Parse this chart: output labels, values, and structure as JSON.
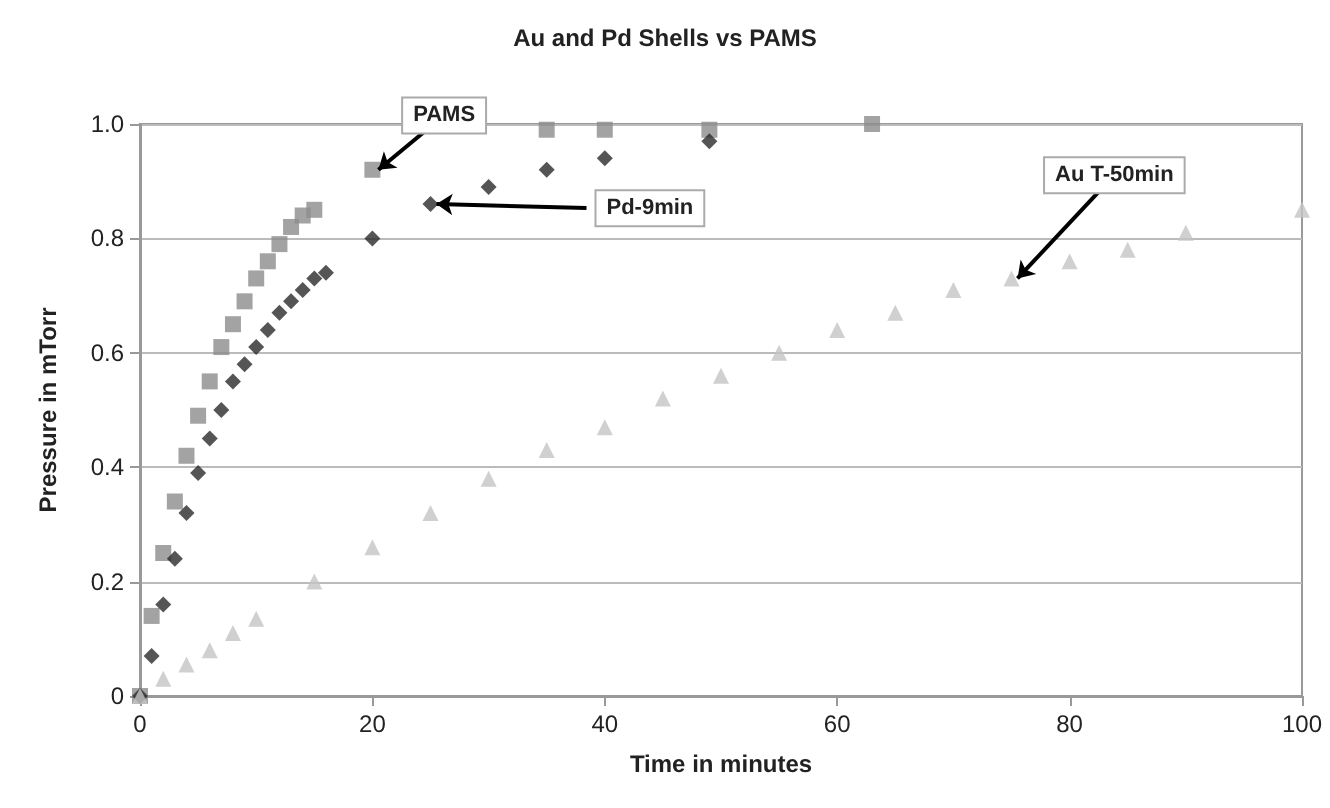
{
  "chart_data": {
    "type": "scatter",
    "title": "Au and Pd Shells vs PAMS",
    "xlabel": "Time in minutes",
    "ylabel": "Pressure in mTorr",
    "xlim": [
      0,
      100
    ],
    "xticks": [
      0,
      20,
      40,
      60,
      80,
      100
    ],
    "ylim": [
      0,
      1
    ],
    "yticks": [
      0,
      0.2,
      0.4,
      0.6,
      0.8,
      {
        "value": 1,
        "label": "1.0"
      }
    ],
    "grid": "y",
    "series": [
      {
        "color": "#8c8c8c",
        "marker": "square",
        "x": [
          0,
          1,
          2,
          3,
          4,
          5,
          6,
          7,
          8,
          9,
          10,
          11,
          12,
          13,
          14,
          15,
          20,
          35,
          40,
          49,
          63
        ],
        "values": [
          0,
          0.14,
          0.25,
          0.34,
          0.42,
          0.49,
          0.55,
          0.61,
          0.65,
          0.69,
          0.73,
          0.76,
          0.79,
          0.82,
          0.84,
          0.85,
          0.92,
          0.99,
          0.99,
          0.99,
          1.0
        ]
      },
      {
        "color": "#2b2b2b",
        "marker": "diamond",
        "x": [
          0,
          1,
          2,
          3,
          4,
          5,
          6,
          7,
          8,
          9,
          10,
          11,
          12,
          13,
          14,
          15,
          16,
          20,
          25,
          30,
          35,
          40,
          49
        ],
        "values": [
          0,
          0.07,
          0.16,
          0.24,
          0.32,
          0.39,
          0.45,
          0.5,
          0.55,
          0.58,
          0.61,
          0.64,
          0.67,
          0.69,
          0.71,
          0.73,
          0.74,
          0.8,
          0.86,
          0.89,
          0.92,
          0.94,
          0.97
        ]
      },
      {
        "color": "#c4c4c4",
        "marker": "triangle",
        "x": [
          0,
          2,
          4,
          6,
          8,
          10,
          15,
          20,
          25,
          30,
          35,
          40,
          45,
          50,
          55,
          60,
          65,
          70,
          75,
          80,
          85,
          90,
          100
        ],
        "values": [
          0,
          0.03,
          0.055,
          0.08,
          0.11,
          0.135,
          0.2,
          0.26,
          0.32,
          0.38,
          0.43,
          0.47,
          0.52,
          0.56,
          0.6,
          0.64,
          0.67,
          0.71,
          0.73,
          0.76,
          0.78,
          0.81,
          0.85
        ]
      }
    ],
    "annotations": [
      {
        "text": "PAMS",
        "x": 20,
        "y": 0.92
      },
      {
        "text": "Pd-9min",
        "x": 25,
        "y": 0.86
      },
      {
        "text": "Au T-50min",
        "x": 75,
        "y": 0.73
      }
    ]
  }
}
